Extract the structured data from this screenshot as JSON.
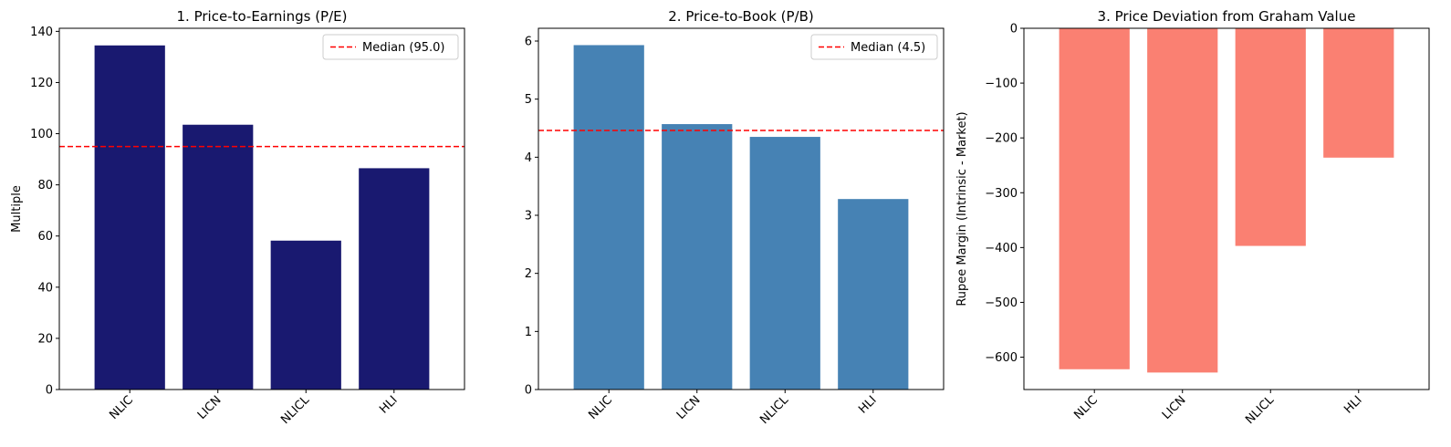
{
  "chart_data": [
    {
      "type": "bar",
      "title": "1. Price-to-Earnings (P/E)",
      "ylabel": "Multiple",
      "xlabel": "",
      "categories": [
        "NLIC",
        "LICN",
        "NLICL",
        "HLI"
      ],
      "values": [
        134.5,
        103.5,
        58.2,
        86.5
      ],
      "ylim": [
        0,
        141.2
      ],
      "yticks": [
        0,
        20,
        40,
        60,
        80,
        100,
        120,
        140
      ],
      "bar_color": "#191970",
      "reference_line": {
        "value": 95.0,
        "color": "#ff0000",
        "label": "Median (95.0)"
      },
      "legend_position": "upper right",
      "grid": false
    },
    {
      "type": "bar",
      "title": "2. Price-to-Book (P/B)",
      "ylabel": "",
      "xlabel": "",
      "categories": [
        "NLIC",
        "LICN",
        "NLICL",
        "HLI"
      ],
      "values": [
        5.93,
        4.57,
        4.35,
        3.28
      ],
      "ylim": [
        0,
        6.22
      ],
      "yticks": [
        0,
        1,
        2,
        3,
        4,
        5,
        6
      ],
      "bar_color": "#4682b4",
      "reference_line": {
        "value": 4.46,
        "color": "#ff0000",
        "label": "Median (4.5)"
      },
      "legend_position": "upper right",
      "grid": false
    },
    {
      "type": "bar",
      "title": "3. Price Deviation from Graham Value",
      "ylabel": "Rupee Margin (Intrinsic - Market)",
      "xlabel": "",
      "categories": [
        "NLIC",
        "LICN",
        "NLICL",
        "HLI"
      ],
      "values": [
        -622,
        -628,
        -397,
        -236
      ],
      "ylim": [
        -659,
        0
      ],
      "yticks": [
        0,
        -100,
        -200,
        -300,
        -400,
        -500,
        -600
      ],
      "bar_color": "#fa8072",
      "grid": false
    }
  ]
}
